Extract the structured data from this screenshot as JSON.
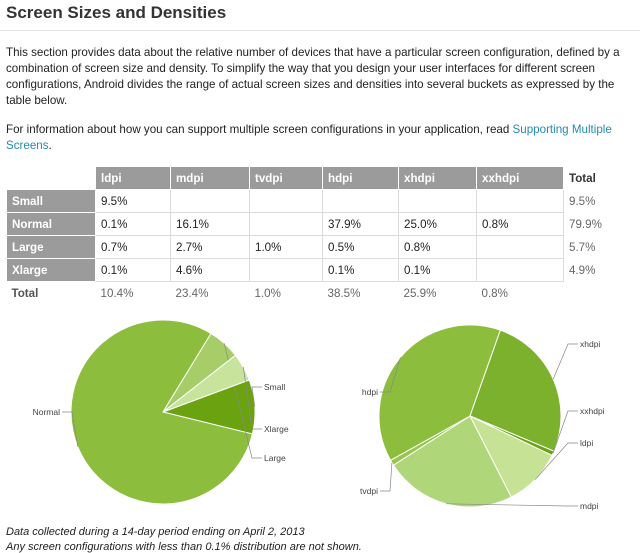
{
  "page": {
    "title": "Screen Sizes and Densities",
    "intro": "This section provides data about the relative number of devices that have a particular screen configuration, defined by a combination of screen size and density. To simplify the way that you design your user interfaces for different screen configurations, Android divides the range of actual screen sizes and densities into several buckets as expressed by the table below.",
    "info_prefix": "For information about how you can support multiple screen configurations in your application, read ",
    "info_link": "Supporting Multiple Screens",
    "info_suffix": "."
  },
  "table": {
    "columns": [
      "ldpi",
      "mdpi",
      "tvdpi",
      "hdpi",
      "xhdpi",
      "xxhdpi"
    ],
    "total_label": "Total",
    "rows": [
      {
        "label": "Small",
        "cells": [
          "9.5%",
          "",
          "",
          "",
          "",
          ""
        ],
        "total": "9.5%"
      },
      {
        "label": "Normal",
        "cells": [
          "0.1%",
          "16.1%",
          "",
          "37.9%",
          "25.0%",
          "0.8%"
        ],
        "total": "79.9%"
      },
      {
        "label": "Large",
        "cells": [
          "0.7%",
          "2.7%",
          "1.0%",
          "0.5%",
          "0.8%",
          ""
        ],
        "total": "5.7%"
      },
      {
        "label": "Xlarge",
        "cells": [
          "0.1%",
          "4.6%",
          "",
          "0.1%",
          "0.1%",
          ""
        ],
        "total": "4.9%"
      }
    ],
    "totals_row": {
      "label": "Total",
      "cells": [
        "10.4%",
        "23.4%",
        "1.0%",
        "38.5%",
        "25.9%",
        "0.8%"
      ]
    }
  },
  "chart_data": [
    {
      "type": "pie",
      "title": "",
      "labels": [
        "Small",
        "Normal",
        "Large",
        "Xlarge"
      ],
      "values": [
        9.5,
        79.9,
        5.7,
        4.9
      ],
      "colors": [
        "#6aa30f",
        "#8cbd3d",
        "#a6cd67",
        "#c8e39c"
      ]
    },
    {
      "type": "pie",
      "title": "",
      "labels": [
        "ldpi",
        "mdpi",
        "tvdpi",
        "hdpi",
        "xhdpi",
        "xxhdpi"
      ],
      "values": [
        10.4,
        23.4,
        1.0,
        38.5,
        25.9,
        0.8
      ],
      "colors": [
        "#c6e295",
        "#b0d67a",
        "#98c54d",
        "#8cbd3d",
        "#7bb12c",
        "#6aa30f"
      ]
    }
  ],
  "notes": {
    "line1": "Data collected during a 14-day period ending on April 2, 2013",
    "line2": "Any screen configurations with less than 0.1% distribution are not shown."
  }
}
